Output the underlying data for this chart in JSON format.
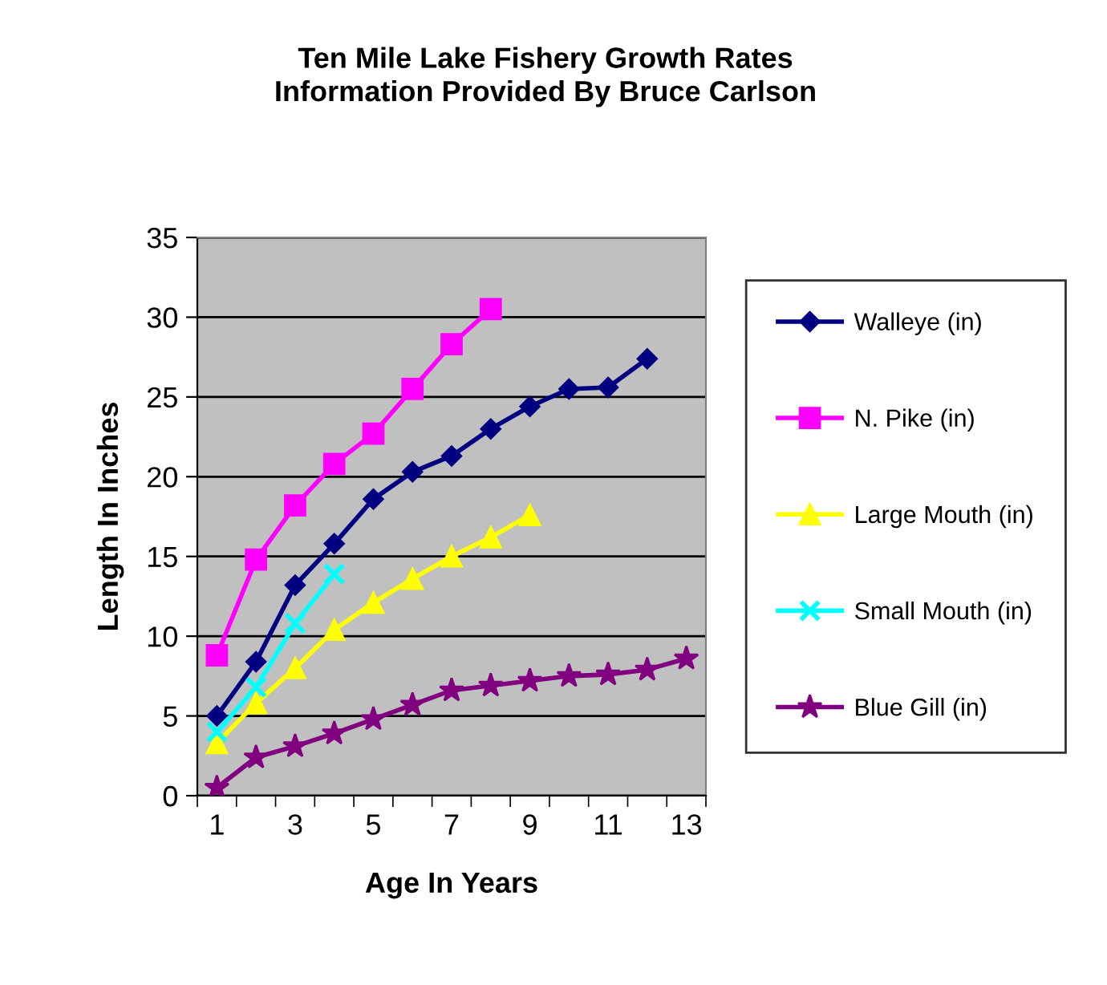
{
  "chart_data": {
    "type": "line",
    "title": "Ten Mile Lake Fishery Growth Rates\nInformation Provided By Bruce Carlson",
    "xlabel": "Age In Years",
    "ylabel": "Length In Inches",
    "categories": [
      "1",
      null,
      "3",
      null,
      "5",
      null,
      "7",
      null,
      "9",
      null,
      "11",
      null,
      "13"
    ],
    "series": [
      {
        "name": "Walleye (in)",
        "color": "#000080",
        "marker": "diamond",
        "values": [
          5.0,
          8.4,
          13.2,
          15.8,
          18.6,
          20.3,
          21.3,
          23.0,
          24.4,
          25.5,
          25.6,
          27.4,
          null
        ]
      },
      {
        "name": "N. Pike (in)",
        "color": "#ff00ff",
        "marker": "square",
        "values": [
          8.8,
          14.8,
          18.2,
          20.8,
          22.7,
          25.5,
          28.3,
          30.5,
          null,
          null,
          null,
          null,
          null
        ]
      },
      {
        "name": "Large Mouth (in)",
        "color": "#ffff00",
        "marker": "triangle",
        "values": [
          3.3,
          5.8,
          8.0,
          10.4,
          12.1,
          13.6,
          15.0,
          16.2,
          17.6,
          null,
          null,
          null,
          null
        ]
      },
      {
        "name": "Small Mouth (in)",
        "color": "#00ffff",
        "marker": "cross",
        "values": [
          4.0,
          6.8,
          10.8,
          13.9,
          null,
          null,
          null,
          null,
          null,
          null,
          null,
          null,
          null
        ]
      },
      {
        "name": "Blue Gill (in)",
        "color": "#800080",
        "marker": "star",
        "values": [
          0.5,
          2.4,
          3.1,
          3.9,
          4.8,
          5.7,
          6.6,
          6.9,
          7.2,
          7.5,
          7.6,
          7.9,
          8.6
        ]
      }
    ],
    "ylim": [
      0,
      35
    ],
    "yticks": [
      0,
      5,
      10,
      15,
      20,
      25,
      30,
      35
    ],
    "grid": "y",
    "legend": "right",
    "line_style": "solid"
  }
}
